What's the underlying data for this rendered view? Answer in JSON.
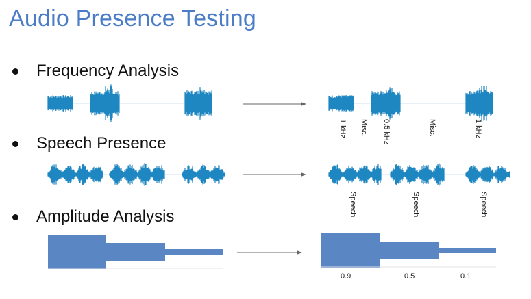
{
  "title": "Audio Presence Testing",
  "sections": [
    {
      "label": "Frequency Analysis"
    },
    {
      "label": "Speech Presence"
    },
    {
      "label": "Amplitude Analysis"
    }
  ],
  "frequency_labels": [
    "1 kHz",
    "Misc.",
    "0.5 kHz",
    "Misc.",
    "1 kHz"
  ],
  "speech_labels": [
    "Speech",
    "Speech",
    "Speech"
  ],
  "amplitude_labels": [
    "0.9",
    "0.5",
    "0.1"
  ],
  "colors": {
    "title": "#4a7cc7",
    "waveform": "#1f86c1",
    "amplitude": "#5a86c4",
    "arrow": "#666666"
  }
}
